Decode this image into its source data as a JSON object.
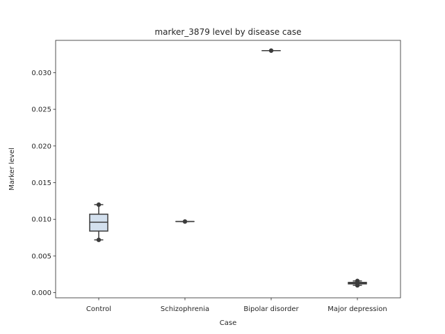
{
  "chart_data": {
    "type": "box",
    "title": "marker_3879 level by disease case",
    "xlabel": "Case",
    "ylabel": "Marker level",
    "ylim": [
      -0.0007,
      0.0344
    ],
    "yticks": [
      0.0,
      0.005,
      0.01,
      0.015,
      0.02,
      0.025,
      0.03
    ],
    "ytick_labels": [
      "0.000",
      "0.005",
      "0.010",
      "0.015",
      "0.020",
      "0.025",
      "0.030"
    ],
    "categories": [
      "Control",
      "Schizophrenia",
      "Bipolar disorder",
      "Major depression"
    ],
    "boxes": [
      {
        "category": "Control",
        "min": 0.0072,
        "q1": 0.0084,
        "median": 0.0096,
        "q3": 0.0107,
        "max": 0.012,
        "points": [
          0.0072,
          0.012
        ]
      },
      {
        "category": "Schizophrenia",
        "min": 0.0097,
        "q1": 0.0097,
        "median": 0.0097,
        "q3": 0.0097,
        "max": 0.0097,
        "points": [
          0.0097
        ]
      },
      {
        "category": "Bipolar disorder",
        "min": 0.033,
        "q1": 0.033,
        "median": 0.033,
        "q3": 0.033,
        "max": 0.033,
        "points": [
          0.033
        ]
      },
      {
        "category": "Major depression",
        "min": 0.001,
        "q1": 0.0012,
        "median": 0.0013,
        "q3": 0.0014,
        "max": 0.0016,
        "points": [
          0.001,
          0.0016
        ]
      }
    ],
    "box_fill": "#d3e0ee",
    "line_color": "#3b3b3b",
    "grid": false
  }
}
